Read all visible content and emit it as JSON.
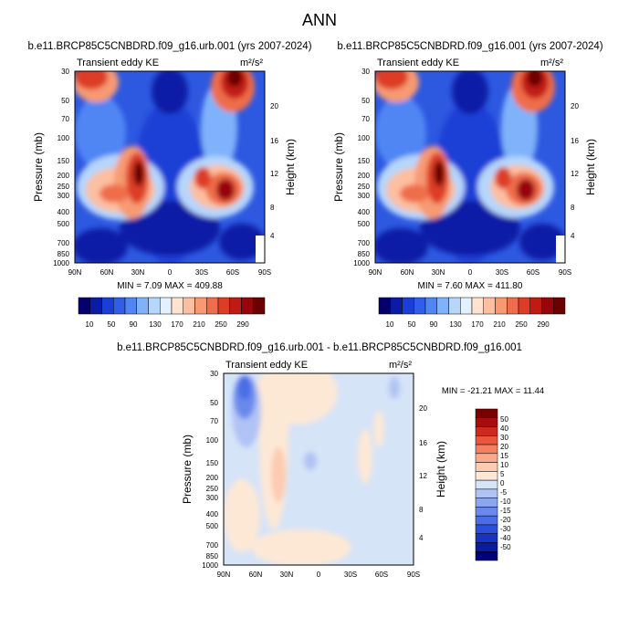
{
  "figure": {
    "title": "ANN",
    "colors": {
      "ke_scale": [
        "#03006e",
        "#0a1ba6",
        "#1a3fd6",
        "#2f5fe8",
        "#4f86f4",
        "#7fb2fa",
        "#b6d6fb",
        "#e3f0fd",
        "#fde3d0",
        "#fcbfa0",
        "#f79a72",
        "#ef6d4a",
        "#dd3d27",
        "#c11a12",
        "#98050a",
        "#6c0000"
      ],
      "diff_scale": [
        "#00007a",
        "#0a1c9e",
        "#1733c4",
        "#2a4fdc",
        "#4a6de6",
        "#6b89ec",
        "#8ca6f0",
        "#b1c3f4",
        "#d6e4f8",
        "#fde8d6",
        "#fccbb0",
        "#faa98a",
        "#f3805f",
        "#e8573c",
        "#cd2a1e",
        "#a90c0c",
        "#7a0000"
      ]
    }
  },
  "chart_data": [
    {
      "type": "heatmap",
      "title": "b.e11.BRCP85C5CNBDRD.f09_g16.urb.001 (yrs 2007-2024)",
      "subtitle_left": "Transient eddy KE",
      "units": "m²/s²",
      "xlabel": "",
      "ylabel": "Pressure (mb)",
      "ylabel_right": "Height (km)",
      "x_ticks": [
        "90N",
        "60N",
        "30N",
        "0",
        "30S",
        "60S",
        "90S"
      ],
      "y_ticks": [
        "30",
        "50",
        "70",
        "100",
        "150",
        "200",
        "250",
        "300",
        "400",
        "500",
        "700",
        "850",
        "1000"
      ],
      "y_ticks_right": [
        "20",
        "16",
        "12",
        "8",
        "4"
      ],
      "stats": "MIN =  7.09  MAX = 409.88",
      "colorbar_labels": [
        "10",
        "50",
        "90",
        "130",
        "170",
        "210",
        "250",
        "290"
      ],
      "features": [
        {
          "lat": 33,
          "pressure": 200,
          "value": 290
        },
        {
          "lat": 52,
          "pressure": 250,
          "value": 230
        },
        {
          "lat": 52,
          "pressure": 250,
          "value": 260
        },
        {
          "lat": -57,
          "pressure": 250,
          "value": 290
        },
        {
          "lat": -38,
          "pressure": 200,
          "value": 250
        },
        {
          "lat": -63,
          "pressure": 35,
          "value": 300
        },
        {
          "lat": 80,
          "pressure": 35,
          "value": 200
        }
      ]
    },
    {
      "type": "heatmap",
      "title": "b.e11.BRCP85C5CNBDRD.f09_g16.001 (yrs 2007-2024)",
      "subtitle_left": "Transient eddy KE",
      "units": "m²/s²",
      "xlabel": "",
      "ylabel": "Pressure (mb)",
      "ylabel_right": "Height (km)",
      "x_ticks": [
        "90N",
        "60N",
        "30N",
        "0",
        "30S",
        "60S",
        "90S"
      ],
      "y_ticks": [
        "30",
        "50",
        "70",
        "100",
        "150",
        "200",
        "250",
        "300",
        "400",
        "500",
        "700",
        "850",
        "1000"
      ],
      "y_ticks_right": [
        "20",
        "16",
        "12",
        "8",
        "4"
      ],
      "stats": "MIN =  7.60  MAX = 411.80",
      "colorbar_labels": [
        "10",
        "50",
        "90",
        "130",
        "170",
        "210",
        "250",
        "290"
      ],
      "features": [
        {
          "lat": 33,
          "pressure": 200,
          "value": 290
        },
        {
          "lat": 52,
          "pressure": 250,
          "value": 260
        },
        {
          "lat": -57,
          "pressure": 250,
          "value": 290
        },
        {
          "lat": -38,
          "pressure": 200,
          "value": 250
        },
        {
          "lat": -63,
          "pressure": 35,
          "value": 300
        },
        {
          "lat": 80,
          "pressure": 35,
          "value": 200
        }
      ]
    },
    {
      "type": "heatmap",
      "title": "b.e11.BRCP85C5CNBDRD.f09_g16.urb.001 - b.e11.BRCP85C5CNBDRD.f09_g16.001",
      "subtitle_left": "Transient eddy KE",
      "units": "m²/s²",
      "xlabel": "",
      "ylabel": "Pressure (mb)",
      "ylabel_right": "Height (km)",
      "x_ticks": [
        "90N",
        "60N",
        "30N",
        "0",
        "30S",
        "60S",
        "90S"
      ],
      "y_ticks": [
        "30",
        "50",
        "70",
        "100",
        "150",
        "200",
        "250",
        "300",
        "400",
        "500",
        "700",
        "850",
        "1000"
      ],
      "y_ticks_right": [
        "20",
        "16",
        "12",
        "8",
        "4"
      ],
      "stats": "MIN = -21.21  MAX =  11.44",
      "colorbar_labels": [
        "50",
        "40",
        "30",
        "20",
        "15",
        "10",
        "5",
        "0",
        "-5",
        "-10",
        "-15",
        "-20",
        "-30",
        "-40",
        "-50"
      ],
      "features": [
        {
          "lat": 72,
          "pressure": 40,
          "value": -15
        },
        {
          "lat": 70,
          "pressure": 60,
          "value": -10
        },
        {
          "lat": 30,
          "pressure": 200,
          "value": 5
        },
        {
          "lat": -5,
          "pressure": 180,
          "value": -5
        },
        {
          "lat": -75,
          "pressure": 35,
          "value": -5
        }
      ]
    }
  ]
}
